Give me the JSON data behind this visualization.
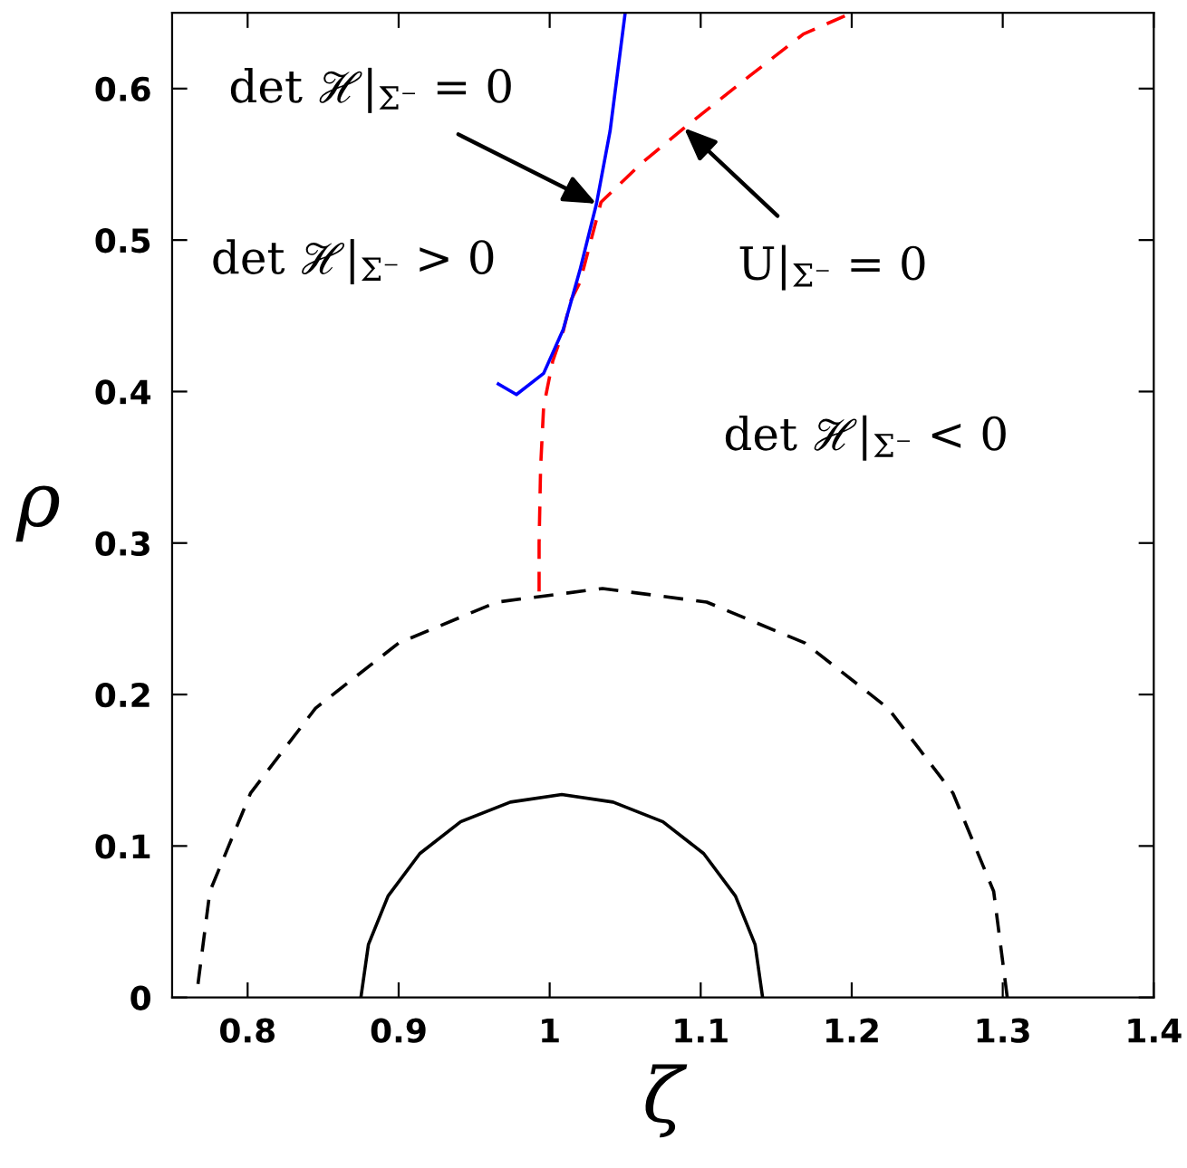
{
  "chart_data": {
    "type": "line",
    "xlabel": "ζ",
    "ylabel": "ρ",
    "xlim": [
      0.75,
      1.4
    ],
    "ylim": [
      0,
      0.65
    ],
    "xticks": [
      0.8,
      0.9,
      1,
      1.1,
      1.2,
      1.3,
      1.4
    ],
    "yticks": [
      0,
      0.1,
      0.2,
      0.3,
      0.4,
      0.5,
      0.6
    ],
    "grid": false,
    "legend": false,
    "marker": "none",
    "series": [
      {
        "color": "#000000",
        "line_style": "solid",
        "x": [
          1.141,
          1.136,
          1.123,
          1.102,
          1.075,
          1.042,
          1.008,
          0.974,
          0.941,
          0.914,
          0.893,
          0.88,
          0.875
        ],
        "values": [
          0,
          0.035,
          0.067,
          0.095,
          0.116,
          0.129,
          0.134,
          0.129,
          0.116,
          0.095,
          0.067,
          0.035,
          0
        ]
      },
      {
        "color": "#000000",
        "line_style": "dashed",
        "x": [
          1.303,
          1.294,
          1.267,
          1.224,
          1.169,
          1.104,
          1.035,
          0.965,
          0.9,
          0.845,
          0.802,
          0.775,
          0.766
        ],
        "values": [
          0,
          0.07,
          0.135,
          0.191,
          0.234,
          0.261,
          0.27,
          0.261,
          0.234,
          0.191,
          0.135,
          0.07,
          0
        ]
      },
      {
        "color": "#ff0000",
        "line_style": "dashed",
        "x": [
          0.993,
          0.993,
          0.994,
          0.996,
          1.002,
          1.009,
          1.014,
          1.02,
          1.034,
          1.06,
          1.089,
          1.132,
          1.168,
          1.2
        ],
        "values": [
          0.268,
          0.3,
          0.35,
          0.39,
          0.42,
          0.44,
          0.46,
          0.472,
          0.525,
          0.55,
          0.574,
          0.608,
          0.636,
          0.65
        ]
      },
      {
        "color": "#0000ff",
        "line_style": "solid",
        "x": [
          0.966,
          0.978,
          0.996,
          1.009,
          1.02,
          1.031,
          1.04,
          1.05
        ],
        "values": [
          0.405,
          0.398,
          0.412,
          0.441,
          0.48,
          0.524,
          0.572,
          0.65
        ]
      }
    ],
    "annotations": [
      {
        "text": "det ℋ|$_{Σ⁻}$ = 0",
        "x": 1.031,
        "y": 0.524
      },
      "det ℋ|$_{Σ⁻}$ > 0",
      {
        "text": "U|$_{Σ⁻}$ = 0",
        "x": 1.089,
        "y": 0.574
      },
      "det ℋ|$_{Σ⁻}$ < 0"
    ]
  }
}
